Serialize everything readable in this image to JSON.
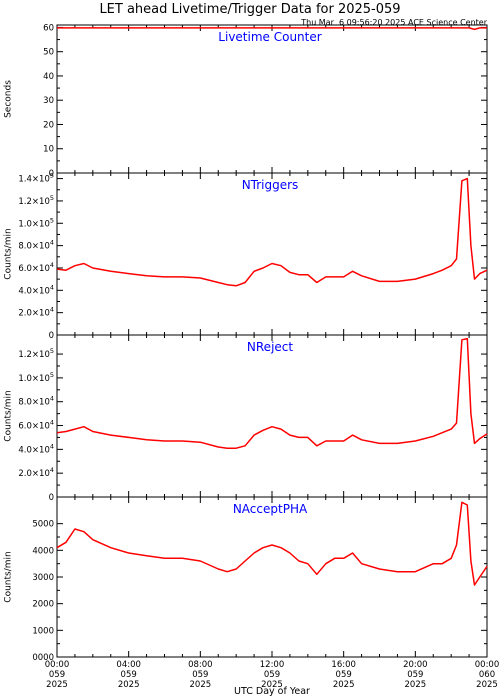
{
  "title": "LET ahead Livetime/Trigger Data for 2025-059",
  "timestamp": "Thu Mar  6 09:56:20 2025 ACE Science Center",
  "xlabel": "UTC Day of Year",
  "x_ticks": [
    {
      "time": "00:00",
      "doy": "059",
      "year": "2025"
    },
    {
      "time": "04:00",
      "doy": "059",
      "year": "2025"
    },
    {
      "time": "08:00",
      "doy": "059",
      "year": "2025"
    },
    {
      "time": "12:00",
      "doy": "059",
      "year": "2025"
    },
    {
      "time": "16:00",
      "doy": "059",
      "year": "2025"
    },
    {
      "time": "20:00",
      "doy": "059",
      "year": "2025"
    },
    {
      "time": "00:00",
      "doy": "060",
      "year": "2025"
    }
  ],
  "colors": {
    "series": "#ff0000",
    "panel_title": "#0000ff",
    "axis": "#000000"
  },
  "chart_data": [
    {
      "type": "line",
      "title": "Livetime Counter",
      "ylabel": "Seconds",
      "xlim": [
        0,
        24
      ],
      "ylim": [
        0,
        61
      ],
      "y_ticks": [
        0,
        10,
        20,
        30,
        40,
        50,
        60
      ],
      "y_tick_labels": [
        "0",
        "10",
        "20",
        "30",
        "40",
        "50",
        "60"
      ],
      "x": [
        0,
        12,
        23.0,
        23.3,
        23.6,
        24
      ],
      "values": [
        59.8,
        59.8,
        59.8,
        59.2,
        59.8,
        59.8
      ]
    },
    {
      "type": "line",
      "title": "NTriggers",
      "ylabel": "Counts/min",
      "xlim": [
        0,
        24
      ],
      "ylim": [
        0,
        145000
      ],
      "y_ticks": [
        0,
        20000,
        40000,
        60000,
        80000,
        100000,
        120000,
        140000
      ],
      "y_tick_labels": [
        {
          "m": "0",
          "e": ""
        },
        {
          "m": "2.0×10",
          "e": "4"
        },
        {
          "m": "4.0×10",
          "e": "4"
        },
        {
          "m": "6.0×10",
          "e": "4"
        },
        {
          "m": "8.0×10",
          "e": "4"
        },
        {
          "m": "1.0×10",
          "e": "5"
        },
        {
          "m": "1.2×10",
          "e": "5"
        },
        {
          "m": "1.4×10",
          "e": "5"
        }
      ],
      "x": [
        0,
        0.5,
        1.0,
        1.5,
        2.0,
        3.0,
        4.0,
        5.0,
        6.0,
        7.0,
        8.0,
        9.0,
        9.5,
        10.0,
        10.5,
        11.0,
        11.5,
        12.0,
        12.5,
        13.0,
        13.5,
        14.0,
        14.5,
        15.0,
        15.5,
        16.0,
        16.5,
        17.0,
        18.0,
        19.0,
        20.0,
        21.0,
        21.5,
        22.0,
        22.3,
        22.6,
        22.9,
        23.1,
        23.3,
        23.6,
        24.0
      ],
      "values": [
        59000,
        58000,
        62000,
        64000,
        60000,
        57000,
        55000,
        53000,
        52000,
        52000,
        51000,
        47000,
        45000,
        44000,
        47000,
        57000,
        60000,
        64000,
        62000,
        56000,
        54000,
        54000,
        47000,
        52000,
        52000,
        52000,
        57000,
        53000,
        48000,
        48000,
        50000,
        55000,
        58000,
        62000,
        68000,
        138000,
        140000,
        80000,
        50000,
        55000,
        58000
      ]
    },
    {
      "type": "line",
      "title": "NReject",
      "ylabel": "Counts/min",
      "xlim": [
        0,
        24
      ],
      "ylim": [
        0,
        136000
      ],
      "y_ticks": [
        0,
        20000,
        40000,
        60000,
        80000,
        100000,
        120000
      ],
      "y_tick_labels": [
        {
          "m": "0",
          "e": ""
        },
        {
          "m": "2.0×10",
          "e": "4"
        },
        {
          "m": "4.0×10",
          "e": "4"
        },
        {
          "m": "6.0×10",
          "e": "4"
        },
        {
          "m": "8.0×10",
          "e": "4"
        },
        {
          "m": "1.0×10",
          "e": "5"
        },
        {
          "m": "1.2×10",
          "e": "5"
        }
      ],
      "x": [
        0,
        0.5,
        1.0,
        1.5,
        2.0,
        3.0,
        4.0,
        5.0,
        6.0,
        7.0,
        8.0,
        9.0,
        9.5,
        10.0,
        10.5,
        11.0,
        11.5,
        12.0,
        12.5,
        13.0,
        13.5,
        14.0,
        14.5,
        15.0,
        15.5,
        16.0,
        16.5,
        17.0,
        18.0,
        19.0,
        20.0,
        21.0,
        21.5,
        22.0,
        22.3,
        22.6,
        22.9,
        23.1,
        23.3,
        23.6,
        24.0
      ],
      "values": [
        54000,
        55000,
        57000,
        59000,
        55000,
        52000,
        50000,
        48000,
        47000,
        47000,
        46000,
        42000,
        41000,
        41000,
        43000,
        52000,
        56000,
        59000,
        57000,
        52000,
        50000,
        50000,
        43000,
        47000,
        47000,
        47000,
        52000,
        48000,
        45000,
        45000,
        47000,
        51000,
        54000,
        57000,
        62000,
        132000,
        133000,
        70000,
        45000,
        49000,
        53000
      ]
    },
    {
      "type": "line",
      "title": "NAcceptPHA",
      "ylabel": "Counts/min",
      "xlim": [
        0,
        24
      ],
      "ylim": [
        0,
        6000
      ],
      "y_ticks": [
        0,
        1000,
        2000,
        3000,
        4000,
        5000
      ],
      "y_tick_labels": [
        "0000",
        "1000",
        "2000",
        "3000",
        "4000",
        "5000"
      ],
      "x": [
        0,
        0.5,
        1.0,
        1.5,
        2.0,
        3.0,
        4.0,
        5.0,
        6.0,
        7.0,
        8.0,
        9.0,
        9.5,
        10.0,
        10.5,
        11.0,
        11.5,
        12.0,
        12.5,
        13.0,
        13.5,
        14.0,
        14.5,
        15.0,
        15.5,
        16.0,
        16.5,
        17.0,
        18.0,
        19.0,
        20.0,
        21.0,
        21.5,
        22.0,
        22.3,
        22.6,
        22.9,
        23.1,
        23.3,
        23.6,
        24.0
      ],
      "values": [
        4100,
        4300,
        4800,
        4700,
        4400,
        4100,
        3900,
        3800,
        3700,
        3700,
        3600,
        3300,
        3200,
        3300,
        3600,
        3900,
        4100,
        4200,
        4100,
        3900,
        3600,
        3500,
        3100,
        3500,
        3700,
        3700,
        3900,
        3500,
        3300,
        3200,
        3200,
        3500,
        3500,
        3700,
        4200,
        5800,
        5700,
        3600,
        2700,
        3000,
        3400
      ]
    }
  ]
}
